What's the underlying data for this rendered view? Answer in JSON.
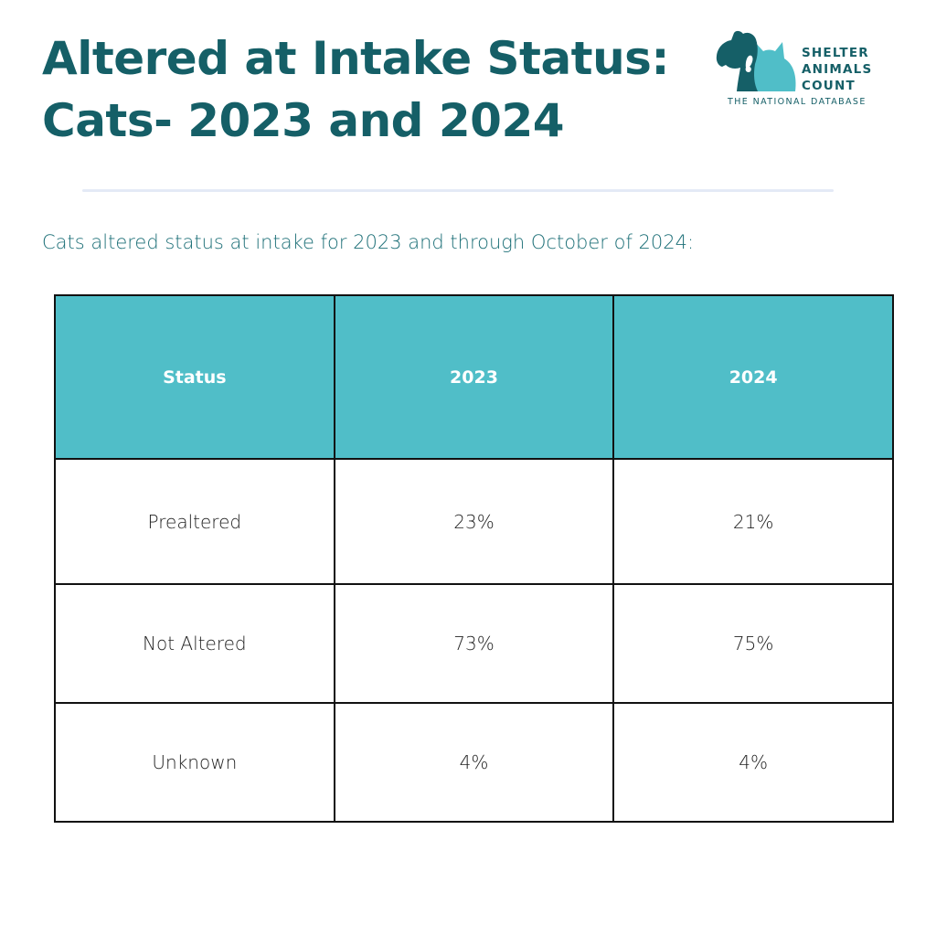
{
  "header": {
    "title_line1": "Altered at Intake Status:",
    "title_line2": "Cats- 2023 and 2024",
    "title_color": "#155f67"
  },
  "logo": {
    "name_line1": "SHELTER",
    "name_line2": "ANIMALS",
    "name_line3": "COUNT",
    "tagline": "THE NATIONAL DATABASE",
    "colors": {
      "dog": "#155f67",
      "cat": "#50bec8"
    }
  },
  "subtitle": "Cats altered status at intake for 2023 and through October of 2024:",
  "chart_data": {
    "type": "table",
    "columns": [
      "Status",
      "2023",
      "2024"
    ],
    "rows": [
      [
        "Prealtered",
        "23%",
        "21%"
      ],
      [
        "Not Altered",
        "73%",
        "75%"
      ],
      [
        "Unknown",
        "4%",
        "4%"
      ]
    ],
    "header_color": "#50bec8"
  }
}
